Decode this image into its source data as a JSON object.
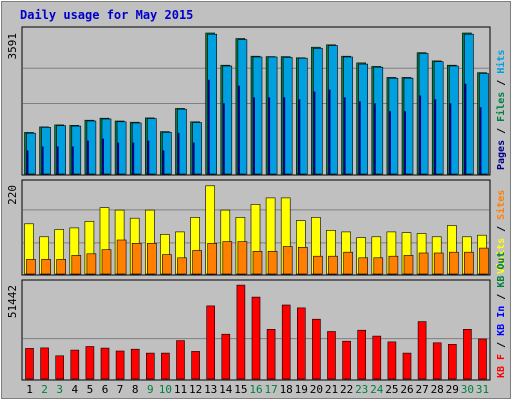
{
  "chart_data": {
    "type": "bar",
    "title": "Daily usage for May 2015",
    "colors": {
      "background": "#c0c0c0",
      "frame": "#ffffff",
      "panel_border": "#000000",
      "title": "#0000cc",
      "day_label": "#000000",
      "weekend_label": "#008040",
      "hits": "#00a0e0",
      "files": "#008040",
      "pages": "#00008b",
      "visits": "#ffff00",
      "sites": "#ff8000",
      "kbf": "#ff0000",
      "kbin": "#0000ff",
      "kbout": "#008040"
    },
    "categories": [
      "1",
      "2",
      "3",
      "4",
      "5",
      "6",
      "7",
      "8",
      "9",
      "10",
      "11",
      "12",
      "13",
      "14",
      "15",
      "16",
      "17",
      "18",
      "19",
      "20",
      "21",
      "22",
      "23",
      "24",
      "25",
      "26",
      "27",
      "28",
      "29",
      "30",
      "31"
    ],
    "weekend_days": [
      "2",
      "3",
      "9",
      "10",
      "16",
      "17",
      "23",
      "24",
      "30",
      "31"
    ],
    "panels": [
      {
        "ylabel": "Pages / Files / Hits",
        "max_label": "3591",
        "ylim": [
          0,
          3591
        ],
        "series": [
          {
            "name": "Files",
            "role": "back",
            "values": [
              1060,
              1200,
              1250,
              1240,
              1370,
              1420,
              1350,
              1320,
              1430,
              1080,
              1670,
              1330,
              3590,
              2770,
              3450,
              3000,
              2990,
              2990,
              2960,
              3230,
              3290,
              3000,
              2830,
              2740,
              2460,
              2460,
              3090,
              2880,
              2770,
              3590,
              2580
            ]
          },
          {
            "name": "Hits",
            "role": "front",
            "values": [
              1040,
              1190,
              1230,
              1220,
              1350,
              1400,
              1330,
              1300,
              1410,
              1060,
              1650,
              1310,
              3560,
              2750,
              3420,
              2980,
              2980,
              2970,
              2950,
              3200,
              3270,
              2980,
              2800,
              2720,
              2440,
              2440,
              3070,
              2860,
              2750,
              3560,
              2560
            ]
          },
          {
            "name": "Pages",
            "role": "inner",
            "values": [
              600,
              700,
              700,
              700,
              850,
              900,
              800,
              800,
              850,
              600,
              1050,
              800,
              2400,
              1800,
              2250,
              1950,
              1950,
              1950,
              1900,
              2100,
              2150,
              1950,
              1850,
              1800,
              1600,
              1600,
              2000,
              1900,
              1800,
              2300,
              1700
            ]
          }
        ]
      },
      {
        "ylabel": "Visits / Sites",
        "max_label": "220",
        "ylim": [
          0,
          220
        ],
        "series": [
          {
            "name": "Visits",
            "role": "back",
            "values": [
              124,
              92,
              110,
              114,
              130,
              164,
              158,
              138,
              158,
              98,
              104,
              140,
              218,
              158,
              140,
              172,
              188,
              188,
              132,
              140,
              108,
              104,
              90,
              92,
              104,
              102,
              100,
              92,
              120,
              92,
              96
            ]
          },
          {
            "name": "Sites",
            "role": "front",
            "values": [
              36,
              36,
              36,
              46,
              50,
              60,
              84,
              76,
              76,
              48,
              40,
              58,
              76,
              80,
              80,
              56,
              56,
              68,
              66,
              44,
              44,
              54,
              40,
              40,
              44,
              46,
              52,
              52,
              54,
              54,
              64
            ]
          }
        ]
      },
      {
        "ylabel": "KB F / KB In / KB Out",
        "max_label": "51442",
        "ylim": [
          0,
          51442
        ],
        "series": [
          {
            "name": "KB F",
            "role": "back",
            "values": [
              16750,
              17000,
              12700,
              15800,
              17800,
              16900,
              15300,
              16300,
              14200,
              14200,
              21000,
              15100,
              40000,
              24500,
              51400,
              44800,
              27200,
              40500,
              38900,
              32700,
              26000,
              20700,
              26700,
              23500,
              20300,
              14200,
              31400,
              19800,
              19000,
              27200,
              21900
            ]
          }
        ]
      }
    ],
    "legend": {
      "panel1": [
        "Pages",
        " / ",
        "Files",
        " / ",
        "Hits"
      ],
      "panel2": [
        "Visits",
        " / ",
        "Sites"
      ],
      "panel3": [
        "KB F",
        " / ",
        "KB In",
        " / ",
        "KB Out"
      ]
    }
  }
}
